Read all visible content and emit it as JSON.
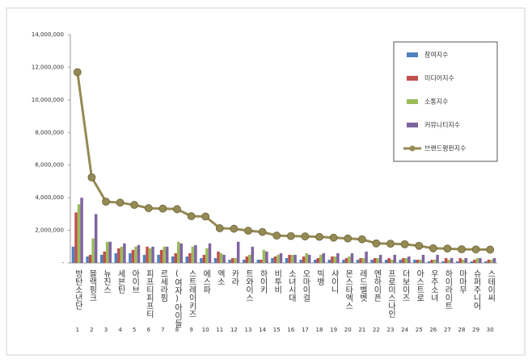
{
  "chart_data": {
    "type": "bar",
    "categories": [
      "방탄소년단",
      "블랙핑크",
      "뉴진스",
      "세븐틴",
      "아이브",
      "피프티피프티",
      "르세라핌",
      "(여자)아이들",
      "스트레이키즈",
      "에스파",
      "엑소",
      "카라",
      "트와이스",
      "하이키",
      "비투비",
      "소녀시대",
      "오마이걸",
      "빅뱅",
      "샤이니",
      "몬스타엑스",
      "레드벨벳",
      "엔하이픈",
      "프로미스나인",
      "더보이즈",
      "아스트로",
      "우주소녀",
      "하이라이트",
      "마마무",
      "슈퍼주니어",
      "스테이씨"
    ],
    "category_numbers": [
      "1",
      "2",
      "3",
      "4",
      "5",
      "6",
      "7",
      "8",
      "9",
      "10",
      "11",
      "12",
      "13",
      "14",
      "15",
      "16",
      "17",
      "18",
      "19",
      "20",
      "21",
      "22",
      "23",
      "24",
      "25",
      "26",
      "27",
      "28",
      "29",
      "30"
    ],
    "series": [
      {
        "name": "참여지수",
        "type": "bar",
        "color": "#4f81bd",
        "values": [
          1000000,
          400000,
          500000,
          600000,
          600000,
          500000,
          500000,
          400000,
          400000,
          300000,
          300000,
          200000,
          200000,
          200000,
          300000,
          300000,
          200000,
          200000,
          200000,
          200000,
          200000,
          200000,
          200000,
          200000,
          200000,
          100000,
          100000,
          100000,
          100000,
          100000
        ]
      },
      {
        "name": "미디어지수",
        "type": "bar",
        "color": "#c0504d",
        "values": [
          3100000,
          500000,
          700000,
          900000,
          800000,
          1000000,
          800000,
          600000,
          600000,
          500000,
          700000,
          300000,
          400000,
          200000,
          400000,
          500000,
          400000,
          300000,
          400000,
          300000,
          300000,
          300000,
          300000,
          300000,
          200000,
          200000,
          300000,
          300000,
          200000,
          200000
        ]
      },
      {
        "name": "소통지수",
        "type": "bar",
        "color": "#9bbb59",
        "values": [
          3600000,
          1500000,
          1300000,
          1000000,
          1000000,
          900000,
          1000000,
          1300000,
          1000000,
          900000,
          600000,
          300000,
          500000,
          800000,
          500000,
          500000,
          600000,
          500000,
          400000,
          400000,
          300000,
          300000,
          200000,
          300000,
          200000,
          200000,
          200000,
          200000,
          300000,
          200000
        ]
      },
      {
        "name": "커뮤니티지수",
        "type": "bar",
        "color": "#8064a2",
        "values": [
          4000000,
          3000000,
          1300000,
          1200000,
          1100000,
          1000000,
          1000000,
          1200000,
          1100000,
          1200000,
          500000,
          1300000,
          1000000,
          700000,
          600000,
          500000,
          500000,
          600000,
          600000,
          600000,
          700000,
          500000,
          500000,
          400000,
          500000,
          500000,
          300000,
          300000,
          300000,
          300000
        ]
      },
      {
        "name": "브랜드평판지수",
        "type": "line",
        "color": "#948a54",
        "values": [
          11700000,
          5250000,
          3760000,
          3700000,
          3560000,
          3360000,
          3330000,
          3300000,
          2870000,
          2850000,
          2130000,
          2100000,
          1980000,
          1900000,
          1680000,
          1650000,
          1630000,
          1600000,
          1550000,
          1500000,
          1450000,
          1200000,
          1180000,
          1150000,
          1050000,
          900000,
          880000,
          840000,
          830000,
          820000
        ]
      }
    ],
    "ylim": [
      0,
      14000000
    ],
    "yticks": [
      {
        "value": 0,
        "label": "-"
      },
      {
        "value": 2000000,
        "label": "2,000,000"
      },
      {
        "value": 4000000,
        "label": "4,000,000"
      },
      {
        "value": 6000000,
        "label": "6,000,000"
      },
      {
        "value": 8000000,
        "label": "8,000,000"
      },
      {
        "value": 10000000,
        "label": "10,000,000"
      },
      {
        "value": 12000000,
        "label": "12,000,000"
      },
      {
        "value": 14000000,
        "label": "14,000,000"
      }
    ],
    "legend": "top-right"
  }
}
